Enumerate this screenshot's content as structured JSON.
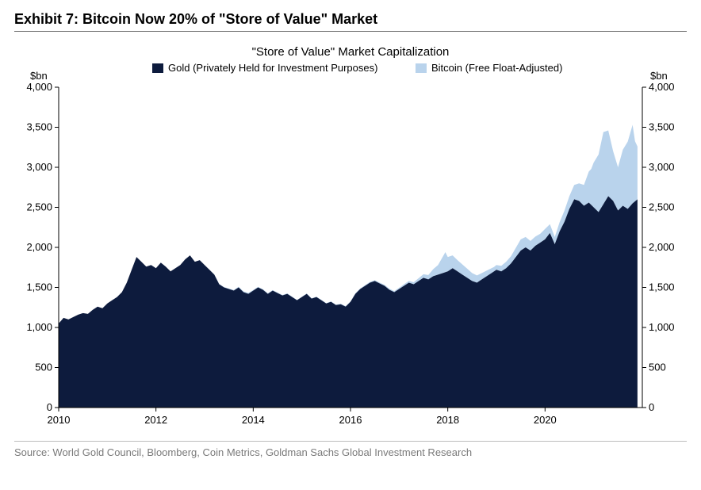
{
  "exhibit": {
    "title": "Exhibit 7: Bitcoin Now 20% of \"Store of Value\" Market",
    "source": "Source: World Gold Council, Bloomberg, Coin Metrics, Goldman Sachs Global Investment Research"
  },
  "chart": {
    "type": "area-stacked",
    "title": "\"Store of Value\" Market Capitalization",
    "title_fontsize": 15,
    "axis_unit_left": "$bn",
    "axis_unit_right": "$bn",
    "label_fontsize": 13,
    "background_color": "#ffffff",
    "axis_color": "#000000",
    "grid_on": false,
    "legend": {
      "position": "top-center",
      "items": [
        {
          "label": "Gold (Privately Held for Investment Purposes)",
          "color": "#0d1b3d"
        },
        {
          "label": "Bitcoin (Free Float-Adjusted)",
          "color": "#b9d3ec"
        }
      ]
    },
    "x": {
      "lim": [
        2010,
        2022
      ],
      "ticks": [
        2010,
        2012,
        2014,
        2016,
        2018,
        2020
      ],
      "tick_labels": [
        "2010",
        "2012",
        "2014",
        "2016",
        "2018",
        "2020"
      ]
    },
    "y": {
      "lim": [
        0,
        4000
      ],
      "ticks": [
        0,
        500,
        1000,
        1500,
        2000,
        2500,
        3000,
        3500,
        4000
      ],
      "tick_labels": [
        "0",
        "500",
        "1,000",
        "1,500",
        "2,000",
        "2,500",
        "3,000",
        "3,500",
        "4,000"
      ]
    },
    "series": {
      "gold": {
        "color": "#0d1b3d",
        "opacity": 1.0,
        "data": [
          [
            2010.0,
            1050
          ],
          [
            2010.1,
            1120
          ],
          [
            2010.2,
            1100
          ],
          [
            2010.3,
            1130
          ],
          [
            2010.4,
            1160
          ],
          [
            2010.5,
            1180
          ],
          [
            2010.6,
            1170
          ],
          [
            2010.7,
            1220
          ],
          [
            2010.8,
            1260
          ],
          [
            2010.9,
            1240
          ],
          [
            2011.0,
            1300
          ],
          [
            2011.1,
            1340
          ],
          [
            2011.2,
            1380
          ],
          [
            2011.3,
            1440
          ],
          [
            2011.4,
            1560
          ],
          [
            2011.5,
            1720
          ],
          [
            2011.6,
            1880
          ],
          [
            2011.7,
            1820
          ],
          [
            2011.8,
            1760
          ],
          [
            2011.9,
            1780
          ],
          [
            2012.0,
            1740
          ],
          [
            2012.1,
            1810
          ],
          [
            2012.2,
            1760
          ],
          [
            2012.3,
            1700
          ],
          [
            2012.4,
            1740
          ],
          [
            2012.5,
            1780
          ],
          [
            2012.6,
            1850
          ],
          [
            2012.7,
            1900
          ],
          [
            2012.8,
            1820
          ],
          [
            2012.9,
            1840
          ],
          [
            2013.0,
            1780
          ],
          [
            2013.1,
            1720
          ],
          [
            2013.2,
            1660
          ],
          [
            2013.3,
            1540
          ],
          [
            2013.4,
            1500
          ],
          [
            2013.5,
            1480
          ],
          [
            2013.6,
            1460
          ],
          [
            2013.7,
            1500
          ],
          [
            2013.8,
            1440
          ],
          [
            2013.9,
            1420
          ],
          [
            2014.0,
            1460
          ],
          [
            2014.1,
            1500
          ],
          [
            2014.2,
            1470
          ],
          [
            2014.3,
            1420
          ],
          [
            2014.4,
            1460
          ],
          [
            2014.5,
            1430
          ],
          [
            2014.6,
            1400
          ],
          [
            2014.7,
            1420
          ],
          [
            2014.8,
            1380
          ],
          [
            2014.9,
            1340
          ],
          [
            2015.0,
            1380
          ],
          [
            2015.1,
            1420
          ],
          [
            2015.2,
            1360
          ],
          [
            2015.3,
            1380
          ],
          [
            2015.4,
            1340
          ],
          [
            2015.5,
            1300
          ],
          [
            2015.6,
            1320
          ],
          [
            2015.7,
            1280
          ],
          [
            2015.8,
            1290
          ],
          [
            2015.9,
            1260
          ],
          [
            2016.0,
            1320
          ],
          [
            2016.1,
            1420
          ],
          [
            2016.2,
            1480
          ],
          [
            2016.3,
            1520
          ],
          [
            2016.4,
            1560
          ],
          [
            2016.5,
            1580
          ],
          [
            2016.6,
            1550
          ],
          [
            2016.7,
            1520
          ],
          [
            2016.8,
            1470
          ],
          [
            2016.9,
            1440
          ],
          [
            2017.0,
            1480
          ],
          [
            2017.1,
            1520
          ],
          [
            2017.2,
            1560
          ],
          [
            2017.3,
            1540
          ],
          [
            2017.4,
            1580
          ],
          [
            2017.5,
            1620
          ],
          [
            2017.6,
            1600
          ],
          [
            2017.7,
            1640
          ],
          [
            2017.8,
            1660
          ],
          [
            2017.9,
            1680
          ],
          [
            2018.0,
            1700
          ],
          [
            2018.1,
            1740
          ],
          [
            2018.2,
            1700
          ],
          [
            2018.3,
            1660
          ],
          [
            2018.4,
            1620
          ],
          [
            2018.5,
            1580
          ],
          [
            2018.6,
            1560
          ],
          [
            2018.7,
            1600
          ],
          [
            2018.8,
            1640
          ],
          [
            2018.9,
            1680
          ],
          [
            2019.0,
            1720
          ],
          [
            2019.1,
            1700
          ],
          [
            2019.2,
            1740
          ],
          [
            2019.3,
            1800
          ],
          [
            2019.4,
            1880
          ],
          [
            2019.5,
            1960
          ],
          [
            2019.6,
            2000
          ],
          [
            2019.7,
            1960
          ],
          [
            2019.8,
            2020
          ],
          [
            2019.9,
            2060
          ],
          [
            2020.0,
            2100
          ],
          [
            2020.1,
            2180
          ],
          [
            2020.2,
            2040
          ],
          [
            2020.3,
            2200
          ],
          [
            2020.4,
            2320
          ],
          [
            2020.5,
            2480
          ],
          [
            2020.6,
            2600
          ],
          [
            2020.7,
            2580
          ],
          [
            2020.8,
            2520
          ],
          [
            2020.9,
            2560
          ],
          [
            2021.0,
            2500
          ],
          [
            2021.1,
            2440
          ],
          [
            2021.2,
            2540
          ],
          [
            2021.3,
            2640
          ],
          [
            2021.4,
            2580
          ],
          [
            2021.5,
            2460
          ],
          [
            2021.6,
            2520
          ],
          [
            2021.7,
            2480
          ],
          [
            2021.8,
            2550
          ],
          [
            2021.9,
            2600
          ]
        ]
      },
      "bitcoin": {
        "color": "#b9d3ec",
        "opacity": 1.0,
        "data": [
          [
            2010.0,
            0
          ],
          [
            2013.0,
            0
          ],
          [
            2013.8,
            10
          ],
          [
            2013.9,
            12
          ],
          [
            2014.0,
            8
          ],
          [
            2015.0,
            4
          ],
          [
            2016.0,
            6
          ],
          [
            2016.5,
            10
          ],
          [
            2017.0,
            16
          ],
          [
            2017.3,
            25
          ],
          [
            2017.6,
            55
          ],
          [
            2017.8,
            120
          ],
          [
            2017.95,
            250
          ],
          [
            2018.0,
            180
          ],
          [
            2018.2,
            140
          ],
          [
            2018.5,
            100
          ],
          [
            2018.8,
            70
          ],
          [
            2018.95,
            55
          ],
          [
            2019.0,
            60
          ],
          [
            2019.3,
            90
          ],
          [
            2019.5,
            140
          ],
          [
            2019.7,
            120
          ],
          [
            2019.9,
            110
          ],
          [
            2020.0,
            130
          ],
          [
            2020.2,
            90
          ],
          [
            2020.4,
            140
          ],
          [
            2020.6,
            180
          ],
          [
            2020.8,
            260
          ],
          [
            2020.95,
            450
          ],
          [
            2021.0,
            560
          ],
          [
            2021.1,
            720
          ],
          [
            2021.2,
            900
          ],
          [
            2021.3,
            820
          ],
          [
            2021.4,
            620
          ],
          [
            2021.5,
            540
          ],
          [
            2021.6,
            700
          ],
          [
            2021.7,
            840
          ],
          [
            2021.8,
            980
          ],
          [
            2021.85,
            750
          ],
          [
            2021.9,
            660
          ]
        ]
      }
    }
  }
}
